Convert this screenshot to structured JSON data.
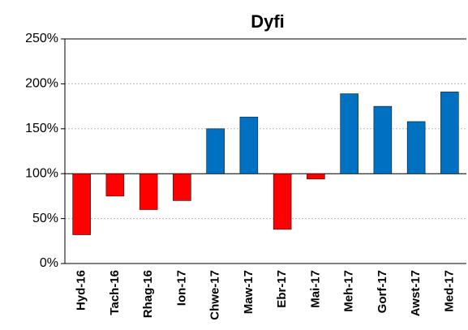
{
  "chart_data": {
    "type": "bar",
    "title": "Dyfi",
    "categories": [
      "Hyd-16",
      "Tach-16",
      "Rhag-16",
      "Ion-17",
      "Chwe-17",
      "Maw-17",
      "Ebr-17",
      "Mai-17",
      "Meh-17",
      "Gorf-17",
      "Awst-17",
      "Med-17"
    ],
    "values": [
      32,
      75,
      60,
      70,
      150,
      163,
      38,
      94,
      189,
      175,
      158,
      191
    ],
    "colors": [
      "#ff0000",
      "#ff0000",
      "#ff0000",
      "#ff0000",
      "#0070c0",
      "#0070c0",
      "#ff0000",
      "#ff0000",
      "#0070c0",
      "#0070c0",
      "#0070c0",
      "#0070c0"
    ],
    "baseline": 100,
    "ylim": [
      0,
      250
    ],
    "yticks": [
      {
        "value": 0,
        "label": "0%"
      },
      {
        "value": 50,
        "label": "50%"
      },
      {
        "value": 100,
        "label": "100%"
      },
      {
        "value": 150,
        "label": "150%"
      },
      {
        "value": 200,
        "label": "200%"
      },
      {
        "value": 250,
        "label": "250%"
      }
    ],
    "grid": true
  }
}
